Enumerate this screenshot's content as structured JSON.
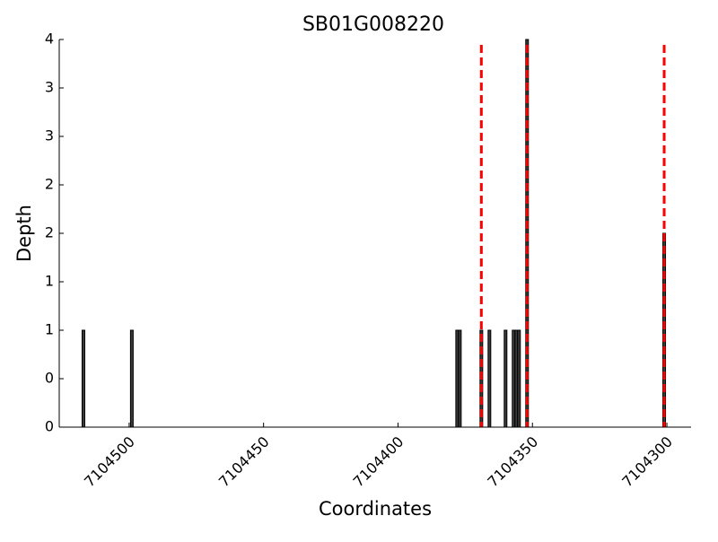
{
  "chart_data": {
    "type": "bar",
    "title": "SB01G008220",
    "xlabel": "Coordinates",
    "ylabel": "Depth",
    "x": [
      7104517,
      7104499,
      7104378,
      7104377,
      7104369,
      7104366,
      7104360,
      7104357,
      7104356,
      7104355,
      7104352,
      7104301
    ],
    "values": [
      1,
      1,
      1,
      1,
      1,
      1,
      1,
      1,
      1,
      1,
      4,
      2
    ],
    "color": "#3a3a3a",
    "xlim": [
      7104526,
      7104291
    ],
    "xticks": [
      7104500,
      7104450,
      7104400,
      7104350,
      7104300
    ],
    "ylim": [
      0,
      4
    ],
    "yticks": [
      0,
      {
        "value": 0.5,
        "label": "0"
      },
      1,
      {
        "value": 1.5,
        "label": "1"
      },
      2,
      {
        "value": 2.5,
        "label": "2"
      },
      3,
      {
        "value": 3.5,
        "label": "3"
      },
      4
    ],
    "vlines": {
      "x": [
        7104369,
        7104352,
        7104301
      ],
      "color": "#ff0000"
    }
  }
}
